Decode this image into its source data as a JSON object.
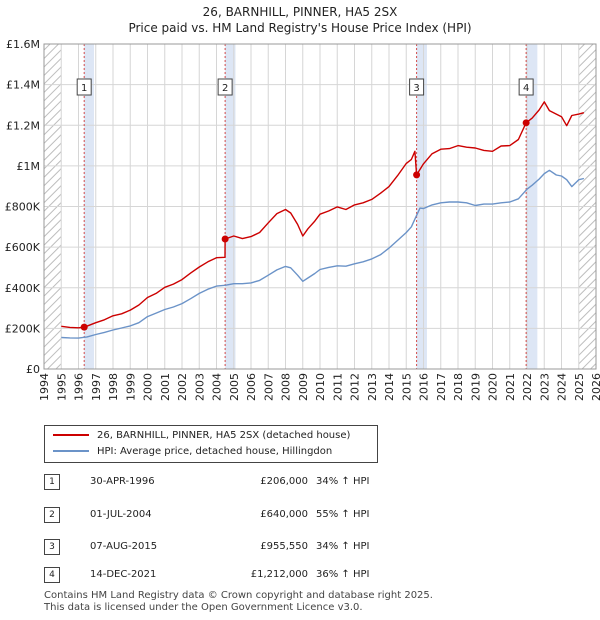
{
  "title": {
    "line1": "26, BARNHILL, PINNER, HA5 2SX",
    "line2": "Price paid vs. HM Land Registry's House Price Index (HPI)"
  },
  "chart_data": {
    "type": "line",
    "title": "26, BARNHILL, PINNER, HA5 2SX — Price paid vs. HM Land Registry's House Price Index (HPI)",
    "xlabel": "",
    "ylabel": "",
    "xlim": [
      1994,
      2026
    ],
    "ylim": [
      0,
      1600000
    ],
    "y_ticks": [
      {
        "value": 0,
        "label": "£0"
      },
      {
        "value": 200000,
        "label": "£200K"
      },
      {
        "value": 400000,
        "label": "£400K"
      },
      {
        "value": 600000,
        "label": "£600K"
      },
      {
        "value": 800000,
        "label": "£800K"
      },
      {
        "value": 1000000,
        "label": "£1M"
      },
      {
        "value": 1200000,
        "label": "£1.2M"
      },
      {
        "value": 1400000,
        "label": "£1.4M"
      },
      {
        "value": 1600000,
        "label": "£1.6M"
      }
    ],
    "x_ticks": [
      "1994",
      "1995",
      "1996",
      "1997",
      "1998",
      "1999",
      "2000",
      "2001",
      "2002",
      "2003",
      "2004",
      "2005",
      "2006",
      "2007",
      "2008",
      "2009",
      "2010",
      "2011",
      "2012",
      "2013",
      "2014",
      "2015",
      "2016",
      "2017",
      "2018",
      "2019",
      "2020",
      "2021",
      "2022",
      "2023",
      "2024",
      "2025",
      "2026"
    ],
    "shaded_periods": [
      [
        1996.33,
        1996.9
      ],
      [
        2004.5,
        2005.1
      ],
      [
        2015.6,
        2016.2
      ],
      [
        2021.95,
        2022.6
      ]
    ],
    "hatched_ranges": [
      [
        1994,
        1995
      ],
      [
        2025,
        2026
      ]
    ],
    "series": [
      {
        "name": "26, BARNHILL, PINNER, HA5 2SX (detached house)",
        "color": "#cc0000",
        "x": [
          1995.0,
          1995.5,
          1996.0,
          1996.33,
          1997.0,
          1997.5,
          1998.0,
          1998.5,
          1999.0,
          1999.5,
          2000.0,
          2000.5,
          2001.0,
          2001.5,
          2002.0,
          2002.5,
          2003.0,
          2003.5,
          2004.0,
          2004.49,
          2004.5,
          2005.0,
          2005.5,
          2006.0,
          2006.5,
          2007.0,
          2007.5,
          2008.0,
          2008.3,
          2008.7,
          2009.0,
          2009.3,
          2009.7,
          2010.0,
          2010.5,
          2011.0,
          2011.5,
          2012.0,
          2012.5,
          2013.0,
          2013.5,
          2014.0,
          2014.5,
          2015.0,
          2015.3,
          2015.5,
          2015.6,
          2016.0,
          2016.5,
          2017.0,
          2017.5,
          2018.0,
          2018.5,
          2019.0,
          2019.5,
          2020.0,
          2020.5,
          2021.0,
          2021.5,
          2021.95,
          2022.3,
          2022.7,
          2023.0,
          2023.3,
          2023.7,
          2024.0,
          2024.3,
          2024.6,
          2025.0,
          2025.3
        ],
        "values": [
          210000,
          205000,
          203000,
          206000,
          228000,
          242000,
          262000,
          272000,
          290000,
          315000,
          352000,
          372000,
          402000,
          418000,
          440000,
          472000,
          502000,
          528000,
          548000,
          550000,
          640000,
          655000,
          642000,
          652000,
          672000,
          720000,
          765000,
          785000,
          768000,
          712000,
          655000,
          690000,
          728000,
          762000,
          778000,
          798000,
          785000,
          808000,
          818000,
          835000,
          865000,
          898000,
          952000,
          1012000,
          1032000,
          1072000,
          955550,
          1010000,
          1060000,
          1082000,
          1085000,
          1100000,
          1092000,
          1088000,
          1076000,
          1072000,
          1098000,
          1100000,
          1130000,
          1212000,
          1235000,
          1275000,
          1315000,
          1272000,
          1255000,
          1242000,
          1198000,
          1248000,
          1255000,
          1262000
        ]
      },
      {
        "name": "HPI: Average price, detached house, Hillingdon",
        "color": "#6b93c8",
        "x": [
          1995.0,
          1995.5,
          1996.0,
          1996.5,
          1997.0,
          1997.5,
          1998.0,
          1998.5,
          1999.0,
          1999.5,
          2000.0,
          2000.5,
          2001.0,
          2001.5,
          2002.0,
          2002.5,
          2003.0,
          2003.5,
          2004.0,
          2004.5,
          2005.0,
          2005.5,
          2006.0,
          2006.5,
          2007.0,
          2007.5,
          2008.0,
          2008.3,
          2008.7,
          2009.0,
          2009.3,
          2009.7,
          2010.0,
          2010.5,
          2011.0,
          2011.5,
          2012.0,
          2012.5,
          2013.0,
          2013.5,
          2014.0,
          2014.5,
          2015.0,
          2015.3,
          2015.5,
          2015.8,
          2016.0,
          2016.5,
          2017.0,
          2017.5,
          2018.0,
          2018.5,
          2019.0,
          2019.5,
          2020.0,
          2020.5,
          2021.0,
          2021.5,
          2022.0,
          2022.3,
          2022.7,
          2023.0,
          2023.3,
          2023.7,
          2024.0,
          2024.3,
          2024.6,
          2025.0,
          2025.3
        ],
        "values": [
          155000,
          153000,
          152000,
          158000,
          170000,
          180000,
          192000,
          202000,
          212000,
          228000,
          258000,
          275000,
          293000,
          305000,
          322000,
          346000,
          372000,
          393000,
          408000,
          412000,
          420000,
          420000,
          424000,
          436000,
          462000,
          488000,
          505000,
          498000,
          462000,
          432000,
          448000,
          470000,
          490000,
          500000,
          508000,
          506000,
          518000,
          528000,
          542000,
          562000,
          595000,
          633000,
          672000,
          700000,
          738000,
          792000,
          790000,
          808000,
          818000,
          822000,
          822000,
          818000,
          805000,
          812000,
          812000,
          818000,
          822000,
          838000,
          885000,
          905000,
          935000,
          962000,
          978000,
          955000,
          950000,
          932000,
          898000,
          932000,
          938000
        ]
      }
    ],
    "annotations": [
      {
        "label": "1",
        "x": 1996.33,
        "value": 206000
      },
      {
        "label": "2",
        "x": 2004.5,
        "value": 640000
      },
      {
        "label": "3",
        "x": 2015.6,
        "value": 955550
      },
      {
        "label": "4",
        "x": 2021.95,
        "value": 1212000
      }
    ]
  },
  "legend": {
    "items": [
      {
        "label": "26, BARNHILL, PINNER, HA5 2SX (detached house)",
        "color": "#cc0000"
      },
      {
        "label": "HPI: Average price, detached house, Hillingdon",
        "color": "#6b93c8"
      }
    ]
  },
  "table": {
    "rows": [
      {
        "num": "1",
        "date": "30-APR-1996",
        "price": "£206,000",
        "hpi": "34% ↑ HPI"
      },
      {
        "num": "2",
        "date": "01-JUL-2004",
        "price": "£640,000",
        "hpi": "55% ↑ HPI"
      },
      {
        "num": "3",
        "date": "07-AUG-2015",
        "price": "£955,550",
        "hpi": "34% ↑ HPI"
      },
      {
        "num": "4",
        "date": "14-DEC-2021",
        "price": "£1,212,000",
        "hpi": "36% ↑ HPI"
      }
    ]
  },
  "footer": {
    "line1": "Contains HM Land Registry data © Crown copyright and database right 2025.",
    "line2": "This data is licensed under the Open Government Licence v3.0."
  }
}
